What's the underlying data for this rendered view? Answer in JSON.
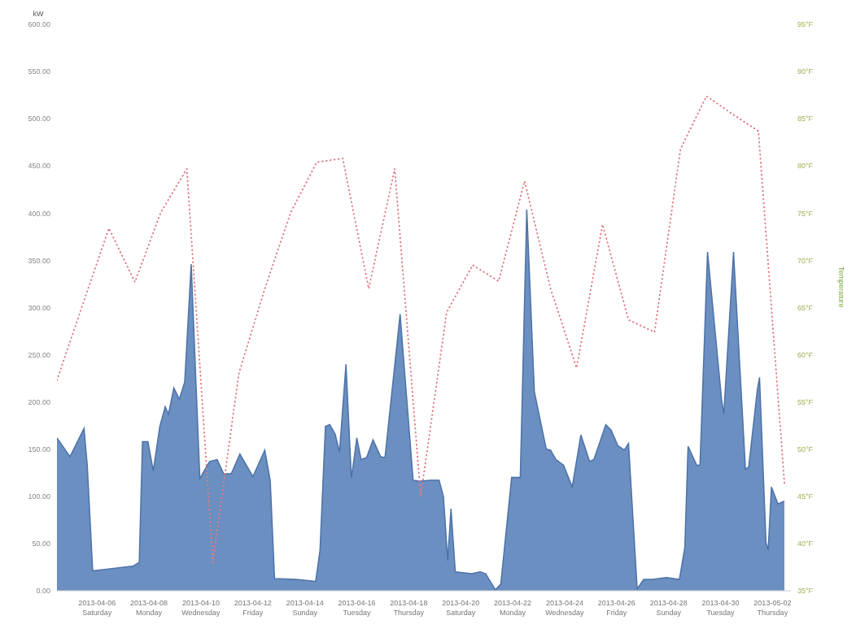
{
  "chart_data": {
    "type": "area",
    "ylabel": "kW",
    "y2label": "Temperature",
    "xlim": [
      "2013-04-04T11:00",
      "2013-05-02T17:00"
    ],
    "xticks": [
      {
        "value": "2013-04-06",
        "label": "2013-04-06\nSaturday"
      },
      {
        "value": "2013-04-08",
        "label": "2013-04-08\nMonday"
      },
      {
        "value": "2013-04-10",
        "label": "2013-04-10\nWednesday"
      },
      {
        "value": "2013-04-12",
        "label": "2013-04-12\nFriday"
      },
      {
        "value": "2013-04-14",
        "label": "2013-04-14\nSunday"
      },
      {
        "value": "2013-04-16",
        "label": "2013-04-16\nTuesday"
      },
      {
        "value": "2013-04-18",
        "label": "2013-04-18\nThursday"
      },
      {
        "value": "2013-04-20",
        "label": "2013-04-20\nSaturday"
      },
      {
        "value": "2013-04-22",
        "label": "2013-04-22\nMonday"
      },
      {
        "value": "2013-04-24",
        "label": "2013-04-24\nWednesday"
      },
      {
        "value": "2013-04-26",
        "label": "2013-04-26\nFriday"
      },
      {
        "value": "2013-04-28",
        "label": "2013-04-28\nSunday"
      },
      {
        "value": "2013-04-30",
        "label": "2013-04-30\nTuesday"
      },
      {
        "value": "2013-05-02",
        "label": "2013-05-02\nThursday"
      }
    ],
    "ylim": [
      0,
      600
    ],
    "yticks": [
      {
        "value": 0,
        "label": "0.00"
      },
      {
        "value": 50,
        "label": "50.00"
      },
      {
        "value": 100,
        "label": "100.00"
      },
      {
        "value": 150,
        "label": "150.00"
      },
      {
        "value": 200,
        "label": "200.00"
      },
      {
        "value": 250,
        "label": "250.00"
      },
      {
        "value": 300,
        "label": "300.00"
      },
      {
        "value": 350,
        "label": "350.00"
      },
      {
        "value": 400,
        "label": "400.00"
      },
      {
        "value": 450,
        "label": "450.00"
      },
      {
        "value": 500,
        "label": "500.00"
      },
      {
        "value": 550,
        "label": "550.00"
      },
      {
        "value": 600,
        "label": "600.00"
      }
    ],
    "y2lim": [
      35,
      95
    ],
    "y2ticks": [
      {
        "value": 35,
        "label": "35°F"
      },
      {
        "value": 40,
        "label": "40°F"
      },
      {
        "value": 45,
        "label": "45°F"
      },
      {
        "value": 50,
        "label": "50°F"
      },
      {
        "value": 55,
        "label": "55°F"
      },
      {
        "value": 60,
        "label": "60°F"
      },
      {
        "value": 65,
        "label": "65°F"
      },
      {
        "value": 70,
        "label": "70°F"
      },
      {
        "value": 75,
        "label": "75°F"
      },
      {
        "value": 80,
        "label": "80°F"
      },
      {
        "value": 85,
        "label": "85°F"
      },
      {
        "value": 90,
        "label": "90°F"
      },
      {
        "value": 95,
        "label": "95°F"
      }
    ],
    "grid": false,
    "legend": false,
    "series": [
      {
        "color": "#6a8fc0",
        "x": [
          "2013-04-04T11:00",
          "2013-04-04T23:00",
          "2013-04-05T12:00",
          "2013-04-05T15:00",
          "2013-04-05T20:00",
          "2013-04-06T17:00",
          "2013-04-07T09:00",
          "2013-04-07T15:00",
          "2013-04-07T18:00",
          "2013-04-07T23:00",
          "2013-04-08T04:00",
          "2013-04-08T10:00",
          "2013-04-08T15:00",
          "2013-04-08T18:00",
          "2013-04-08T23:00",
          "2013-04-09T04:00",
          "2013-04-09T09:00",
          "2013-04-09T15:00",
          "2013-04-09T23:00",
          "2013-04-10T08:00",
          "2013-04-10T15:00",
          "2013-04-10T21:00",
          "2013-04-11T04:00",
          "2013-04-11T12:00",
          "2013-04-12T00:00",
          "2013-04-12T11:00",
          "2013-04-12T16:00",
          "2013-04-12T20:00",
          "2013-04-13T16:00",
          "2013-04-14T10:00",
          "2013-04-14T14:00",
          "2013-04-14T19:00",
          "2013-04-14T23:00",
          "2013-04-15T04:00",
          "2013-04-15T08:00",
          "2013-04-15T14:00",
          "2013-04-15T19:00",
          "2013-04-16T00:00",
          "2013-04-16T04:00",
          "2013-04-16T09:00",
          "2013-04-16T15:00",
          "2013-04-16T22:00",
          "2013-04-17T02:00",
          "2013-04-17T16:00",
          "2013-04-18T04:00",
          "2013-04-18T10:00",
          "2013-04-18T20:00",
          "2013-04-19T04:00",
          "2013-04-19T08:00",
          "2013-04-19T12:00",
          "2013-04-19T15:00",
          "2013-04-19T19:00",
          "2013-04-20T10:00",
          "2013-04-20T18:00",
          "2013-04-20T23:00",
          "2013-04-21T08:00",
          "2013-04-21T13:00",
          "2013-04-21T23:00",
          "2013-04-22T07:00",
          "2013-04-22T13:00",
          "2013-04-22T20:00",
          "2013-04-23T07:00",
          "2013-04-23T11:00",
          "2013-04-23T16:00",
          "2013-04-23T23:00",
          "2013-04-24T07:00",
          "2013-04-24T15:00",
          "2013-04-24T23:00",
          "2013-04-25T03:00",
          "2013-04-25T14:00",
          "2013-04-25T19:00",
          "2013-04-26T01:00",
          "2013-04-26T07:00",
          "2013-04-26T11:00",
          "2013-04-26T19:00",
          "2013-04-27T01:00",
          "2013-04-27T09:00",
          "2013-04-27T22:00",
          "2013-04-28T10:00",
          "2013-04-28T15:00",
          "2013-04-28T18:00",
          "2013-04-29T02:00",
          "2013-04-29T05:00",
          "2013-04-29T12:00",
          "2013-04-30T01:00",
          "2013-04-30T03:00",
          "2013-04-30T12:00",
          "2013-04-30T23:00",
          "2013-05-01T02:00",
          "2013-05-01T10:00",
          "2013-05-01T12:00",
          "2013-05-01T18:00",
          "2013-05-01T20:00",
          "2013-05-01T23:00",
          "2013-05-02T05:00",
          "2013-05-02T11:00"
        ],
        "values": [
          162,
          142,
          172,
          133,
          21,
          24,
          26,
          30,
          158,
          158,
          127,
          174,
          195,
          187,
          215,
          203,
          221,
          346,
          119,
          137,
          139,
          124,
          124,
          145,
          121,
          149,
          117,
          13,
          12,
          10,
          43,
          174,
          176,
          166,
          147,
          240,
          119,
          162,
          139,
          141,
          160,
          142,
          141,
          293,
          117,
          116,
          117,
          117,
          100,
          32,
          87,
          20,
          18,
          20,
          18,
          1,
          7,
          120,
          120,
          404,
          211,
          150,
          149,
          139,
          133,
          110,
          165,
          137,
          139,
          176,
          170,
          154,
          149,
          156,
          2,
          12,
          12,
          14,
          12,
          46,
          153,
          133,
          133,
          359,
          202,
          187,
          359,
          129,
          131,
          213,
          226,
          51,
          43,
          110,
          92,
          95
        ]
      },
      {
        "type": "line",
        "axis": "y2",
        "color": "#e07c84",
        "line_style": "dotted",
        "marker": "none",
        "x": [
          "2013-04-04T11:00",
          "2013-04-05T11:00",
          "2013-04-06T11:00",
          "2013-04-07T11:00",
          "2013-04-08T11:00",
          "2013-04-09T11:00",
          "2013-04-10T11:00",
          "2013-04-11T11:00",
          "2013-04-12T11:00",
          "2013-04-13T11:00",
          "2013-04-14T11:00",
          "2013-04-15T11:00",
          "2013-04-16T11:00",
          "2013-04-17T11:00",
          "2013-04-18T11:00",
          "2013-04-19T11:00",
          "2013-04-20T11:00",
          "2013-04-21T11:00",
          "2013-04-22T11:00",
          "2013-04-23T11:00",
          "2013-04-24T11:00",
          "2013-04-25T11:00",
          "2013-04-26T11:00",
          "2013-04-27T11:00",
          "2013-04-28T11:00",
          "2013-04-29T11:00",
          "2013-04-30T11:00",
          "2013-05-01T11:00",
          "2013-05-02T11:00"
        ],
        "values": [
          57.3,
          65.4,
          73.4,
          67.7,
          75.1,
          79.7,
          38,
          58,
          67,
          75.1,
          80.4,
          80.8,
          67,
          79.7,
          45,
          64.5,
          69.5,
          67.8,
          78.4,
          67,
          58.6,
          73.8,
          63.7,
          62.4,
          81.8,
          87.4,
          85.5,
          83.7,
          46.4
        ]
      }
    ]
  }
}
